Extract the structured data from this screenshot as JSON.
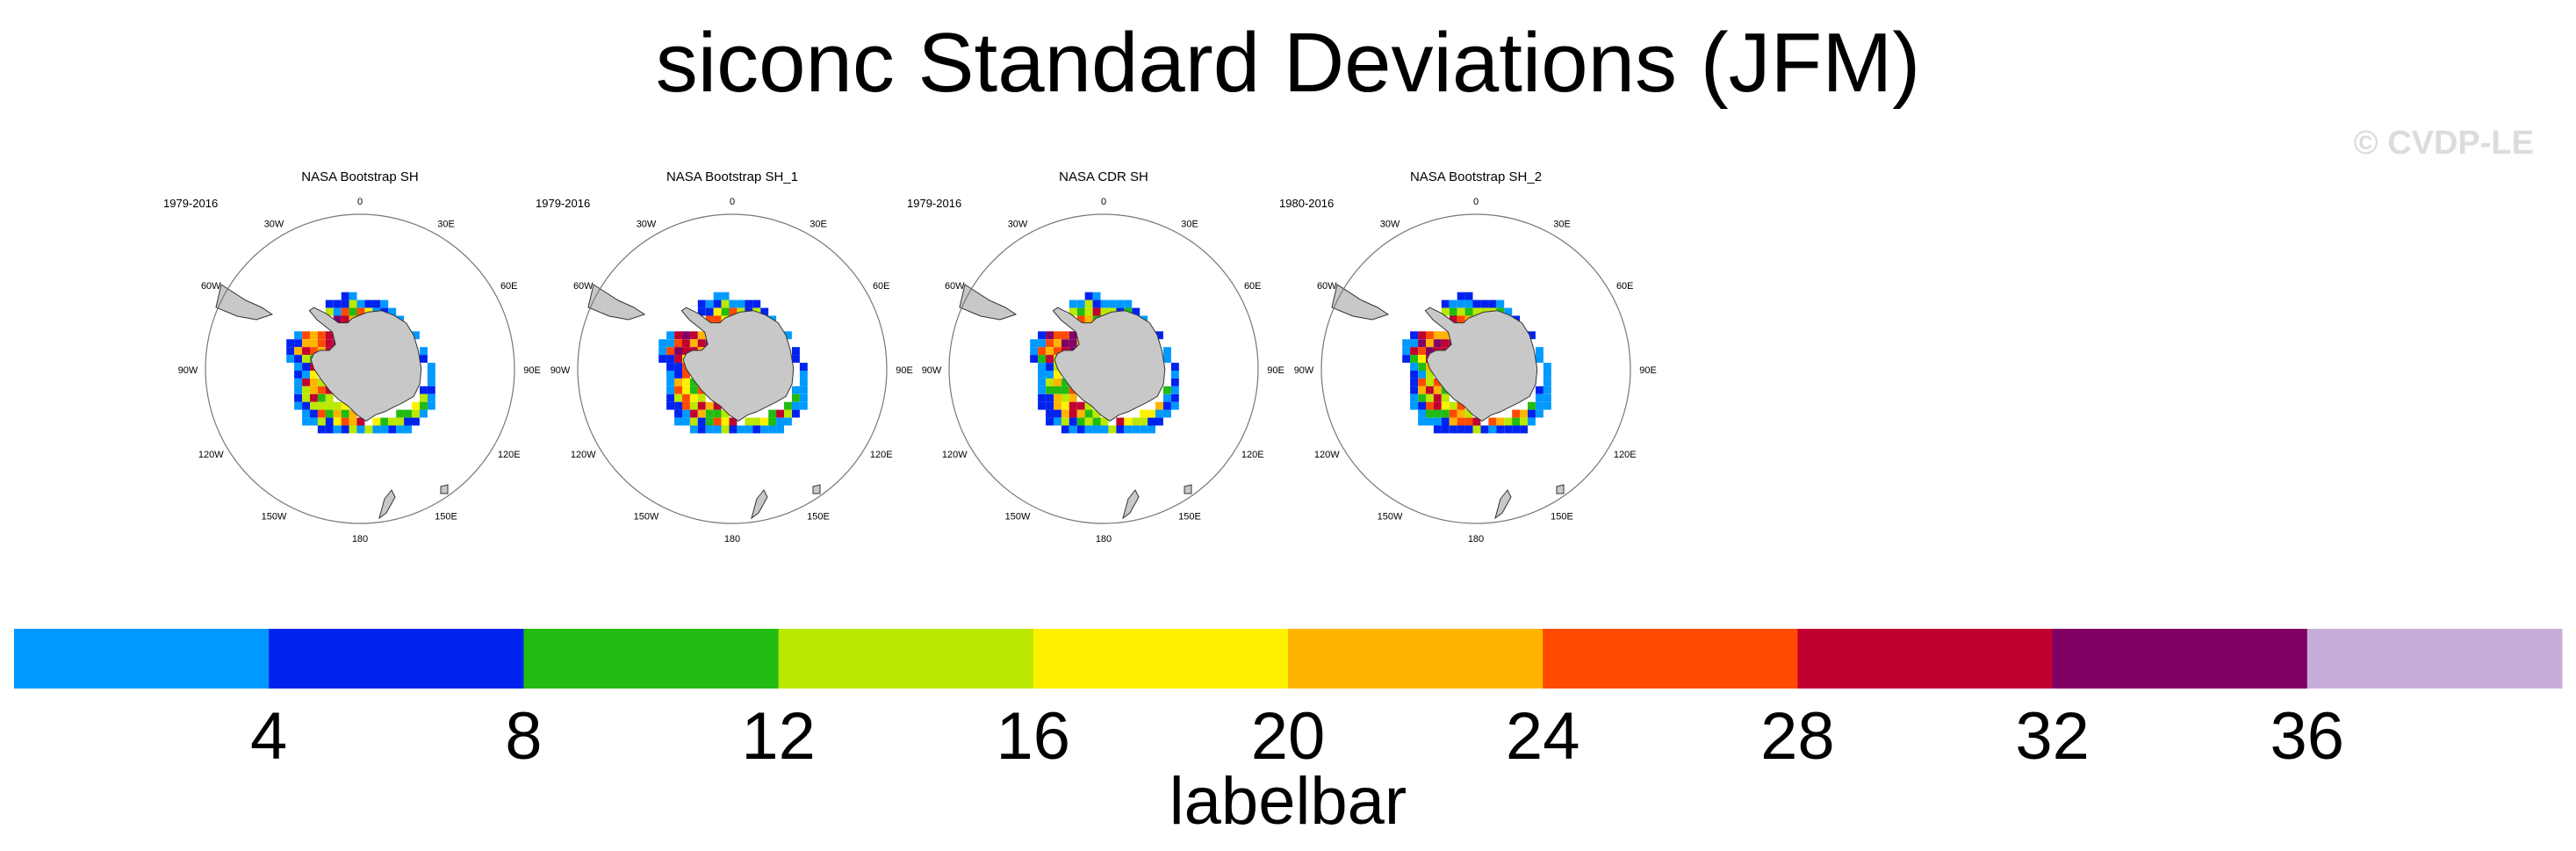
{
  "figure": {
    "title": "siconc Standard Deviations (JFM)",
    "watermark": "© CVDP-LE"
  },
  "chart_data": {
    "type": "heatmap",
    "title": "siconc Standard Deviations (JFM)",
    "panels": [
      {
        "title": "NASA Bootstrap SH",
        "period": "1979-2016"
      },
      {
        "title": "NASA Bootstrap SH_1",
        "period": "1979-2016"
      },
      {
        "title": "NASA CDR SH",
        "period": "1979-2016"
      },
      {
        "title": "NASA Bootstrap SH_2",
        "period": "1980-2016"
      }
    ],
    "longitude_labels": [
      "0",
      "30E",
      "60E",
      "90E",
      "120E",
      "150E",
      "180",
      "150W",
      "120W",
      "90W",
      "60W",
      "30W"
    ],
    "colorbar": {
      "label": "labelbar",
      "levels": [
        4,
        8,
        12,
        16,
        20,
        24,
        28,
        32,
        36
      ],
      "tick_labels": [
        "4",
        "8",
        "12",
        "16",
        "20",
        "24",
        "28",
        "32",
        "36"
      ],
      "colors": [
        "#0099ff",
        "#0022ee",
        "#22bb11",
        "#bbe800",
        "#fff200",
        "#ffb400",
        "#ff4a00",
        "#c00030",
        "#800066",
        "#c8acd8"
      ]
    }
  }
}
